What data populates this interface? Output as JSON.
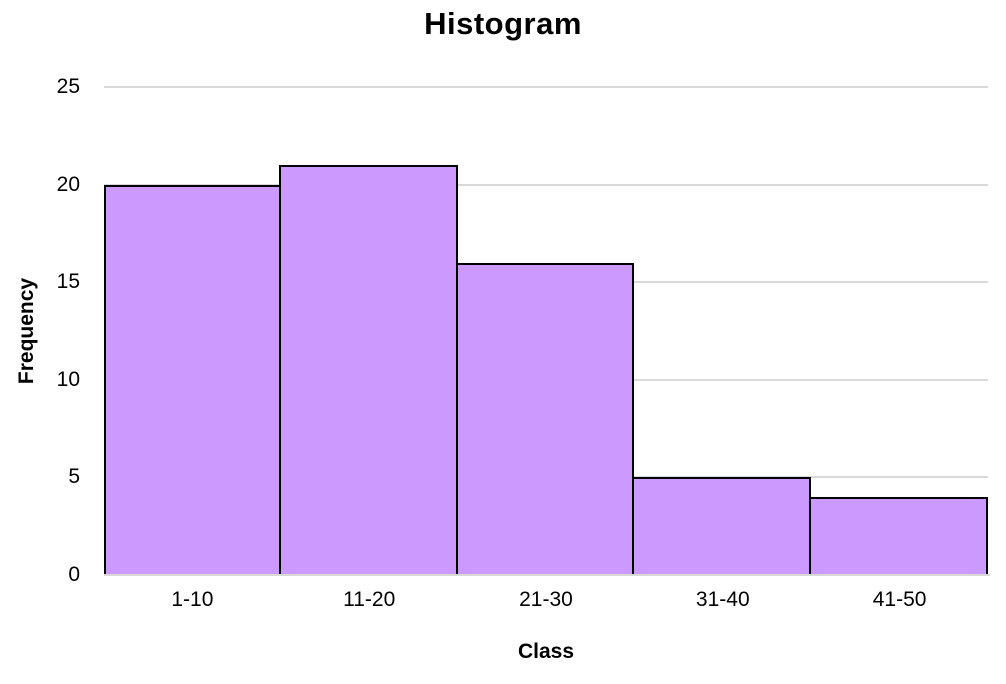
{
  "chart_data": {
    "type": "bar",
    "subtype": "histogram",
    "title": "Histogram",
    "xlabel": "Class",
    "ylabel": "Frequency",
    "categories": [
      "1-10",
      "11-20",
      "21-30",
      "31-40",
      "41-50"
    ],
    "values": [
      20,
      21,
      16,
      5,
      4
    ],
    "ylim": [
      0,
      25
    ],
    "yticks": [
      0,
      5,
      10,
      15,
      20,
      25
    ],
    "grid": true,
    "legend": false,
    "bar_gap": 0,
    "colors": {
      "bar_fill": "#CC99FF",
      "bar_border": "#000000",
      "gridline": "#D9D9D9",
      "axis_line": "#D9D9D9",
      "text": "#000000"
    }
  }
}
